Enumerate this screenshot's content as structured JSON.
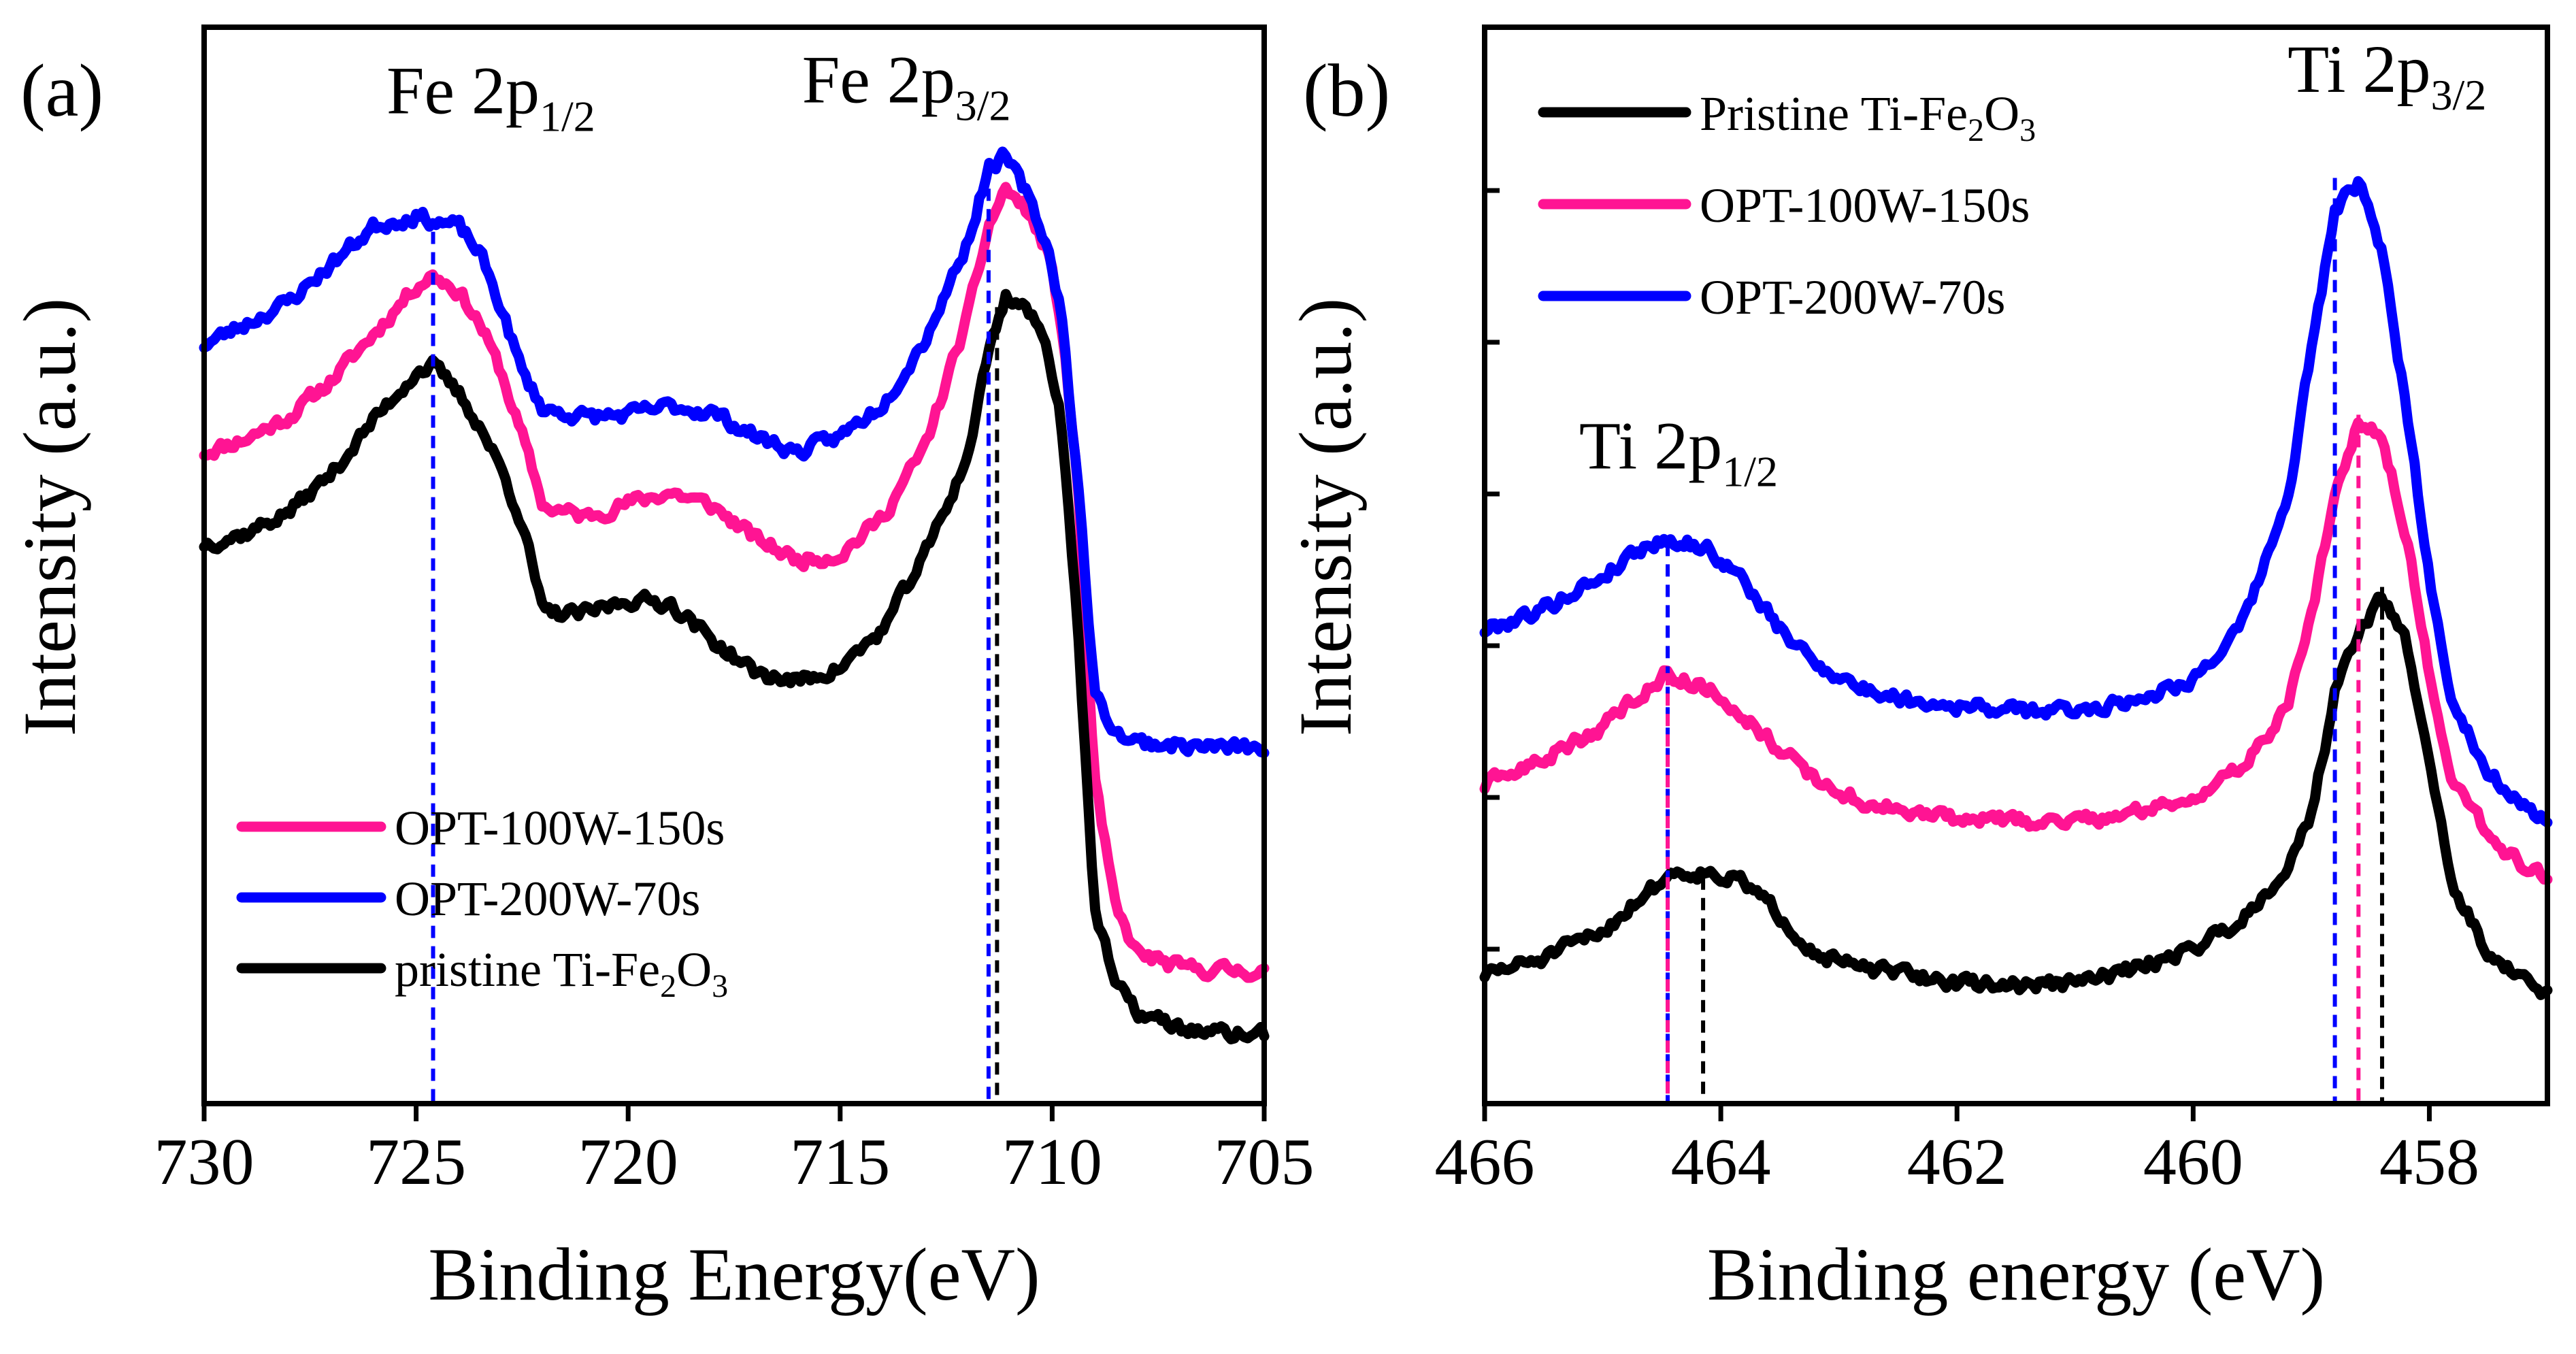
{
  "colors": {
    "black": "#000000",
    "pink": "#ff1493",
    "blue": "#0000ff"
  },
  "chart_data": [
    {
      "panel_label": "(a)",
      "type": "line",
      "xlabel": "Binding Energy(eV)",
      "ylabel": "Intensity (a.u.)",
      "xlim": [
        730,
        705
      ],
      "xticks": [
        730,
        725,
        720,
        715,
        710,
        705
      ],
      "xtick_labels": [
        "730",
        "725",
        "720",
        "715",
        "710",
        "705"
      ],
      "ylim": [
        0,
        100
      ],
      "peak_labels": [
        {
          "base": "Fe 2p",
          "sub": "1/2",
          "x": 725.7,
          "y": 92
        },
        {
          "base": "Fe 2p",
          "sub": "3/2",
          "x": 715.9,
          "y": 93
        }
      ],
      "reference_lines": [
        {
          "x": 724.6,
          "color": "blue",
          "y_top": 81
        },
        {
          "x": 711.3,
          "color": "black",
          "y_top": 74
        },
        {
          "x": 711.5,
          "color": "blue",
          "y_top": 85
        }
      ],
      "legend": [
        {
          "label": "OPT-100W-150s",
          "series": "OPT-100W-150s",
          "color": "pink"
        },
        {
          "label": "OPT-200W-70s",
          "series": "OPT-200W-70s",
          "color": "blue"
        },
        {
          "label_base": "pristine Ti-Fe",
          "label_sub1": "2",
          "label_mid": "O",
          "label_sub2": "3",
          "series": "pristine Ti-Fe2O3",
          "color": "black"
        }
      ],
      "series": [
        {
          "name": "OPT-100W-150s",
          "color": "pink",
          "seed": 11,
          "x": [
            730,
            729,
            728,
            727,
            726,
            725,
            724.6,
            724,
            723.5,
            723,
            722.5,
            722,
            721,
            720,
            719,
            718,
            717,
            716,
            715,
            714,
            713,
            712,
            711.5,
            711.1,
            710.6,
            710.1,
            709.8,
            709.4,
            709,
            708.5,
            708,
            707,
            706,
            705
          ],
          "y": [
            60.5,
            61.8,
            63.8,
            67.2,
            71.5,
            76,
            77,
            75.5,
            72.5,
            68,
            62,
            55.5,
            54.5,
            55.8,
            56.8,
            55.5,
            52.5,
            50.5,
            51,
            54.5,
            61,
            73,
            81.5,
            85,
            83,
            79,
            73,
            58,
            30,
            18,
            14,
            12.6,
            12.4,
            12.3
          ]
        },
        {
          "name": "OPT-200W-70s",
          "color": "blue",
          "seed": 23,
          "x": [
            730,
            729,
            728,
            727,
            726,
            725,
            724.6,
            724,
            723.5,
            723,
            722.5,
            722,
            721,
            720,
            719,
            718,
            717,
            716,
            715,
            714,
            713,
            712,
            711.5,
            711.1,
            710.6,
            710.1,
            709.8,
            709.4,
            709,
            708.5,
            708,
            707,
            706,
            705
          ],
          "y": [
            70.5,
            72.5,
            74.5,
            78,
            81.5,
            82.5,
            82,
            81.5,
            79,
            74,
            68,
            64.5,
            63.8,
            64,
            64.8,
            64.2,
            62,
            60.5,
            62,
            65,
            71,
            80,
            87,
            88,
            84.5,
            79.5,
            74,
            58,
            38,
            34.5,
            33.6,
            33.3,
            33.1,
            33
          ]
        },
        {
          "name": "pristine Ti-Fe2O3",
          "color": "black",
          "seed": 37,
          "x": [
            730,
            729,
            728,
            727,
            726,
            725,
            724.6,
            724,
            723.5,
            723,
            722.5,
            722,
            721,
            720,
            719,
            718,
            717,
            716,
            715,
            714,
            713,
            712,
            711.5,
            711.1,
            710.6,
            710.1,
            709.8,
            709.4,
            709,
            708.5,
            708,
            707,
            706,
            705
          ],
          "y": [
            52,
            53,
            55,
            58.5,
            63.5,
            68,
            68.5,
            66,
            63,
            59,
            54,
            45.5,
            45.5,
            46.8,
            46.5,
            43,
            40,
            39.2,
            40.5,
            44,
            51,
            60,
            70,
            75,
            74,
            70,
            64,
            45,
            18,
            11,
            8.5,
            7,
            6.5,
            6.4
          ]
        }
      ]
    },
    {
      "panel_label": "(b)",
      "type": "line",
      "xlabel": "Binding energy (eV)",
      "ylabel": "Intensity (a.u.)",
      "xlim": [
        466,
        457
      ],
      "xticks": [
        466,
        464,
        462,
        460,
        458
      ],
      "xtick_labels": [
        "466",
        "464",
        "462",
        "460",
        "458"
      ],
      "ylim": [
        0,
        100
      ],
      "peak_labels": [
        {
          "base": "Ti 2p",
          "sub": "1/2",
          "x": 465.2,
          "y": 59
        },
        {
          "base": "Ti 2p",
          "sub": "3/2",
          "x": 459.2,
          "y": 94
        }
      ],
      "reference_lines": [
        {
          "x": 464.45,
          "color": "blue",
          "y_top": 52
        },
        {
          "x": 464.45,
          "color": "pink",
          "y_top": 40
        },
        {
          "x": 464.15,
          "color": "black",
          "y_top": 21
        },
        {
          "x": 458.8,
          "color": "blue",
          "y_top": 86
        },
        {
          "x": 458.6,
          "color": "pink",
          "y_top": 64
        },
        {
          "x": 458.4,
          "color": "black",
          "y_top": 48
        }
      ],
      "legend": [
        {
          "label_base": "Pristine Ti-Fe",
          "label_sub1": "2",
          "label_mid": "O",
          "label_sub2": "3",
          "series": "Pristine Ti-Fe2O3",
          "color": "black"
        },
        {
          "label": "OPT-100W-150s",
          "series": "OPT-100W-150s",
          "color": "pink"
        },
        {
          "label": "OPT-200W-70s",
          "series": "OPT-200W-70s",
          "color": "blue"
        }
      ],
      "series": [
        {
          "name": "Pristine Ti-Fe2O3",
          "color": "black",
          "seed": 51,
          "x": [
            466,
            465.5,
            465,
            464.7,
            464.4,
            464.1,
            463.8,
            463.5,
            463.2,
            462.8,
            462.4,
            462,
            461.5,
            461,
            460.5,
            460,
            459.6,
            459.2,
            459,
            458.8,
            458.6,
            458.4,
            458.2,
            458,
            457.8,
            457.5,
            457.2,
            457
          ],
          "y": [
            12,
            13.5,
            16,
            19,
            21.5,
            21.5,
            20.5,
            17.5,
            14,
            12.5,
            12,
            11.2,
            11,
            11.2,
            12.5,
            14.5,
            17,
            22,
            27,
            38,
            44,
            47,
            43,
            32,
            20,
            14,
            11.5,
            10
          ]
        },
        {
          "name": "OPT-100W-150s",
          "color": "pink",
          "seed": 63,
          "x": [
            466,
            465.5,
            465,
            464.7,
            464.45,
            464.1,
            463.8,
            463.5,
            463.2,
            462.8,
            462.4,
            462,
            461.5,
            461,
            460.5,
            460,
            459.6,
            459.2,
            459,
            458.8,
            458.6,
            458.4,
            458.2,
            458,
            457.8,
            457.5,
            457.2,
            457
          ],
          "y": [
            29.5,
            32,
            35,
            38,
            40,
            38.5,
            36,
            33,
            30,
            28,
            27,
            26.5,
            26.2,
            26.3,
            27,
            28.5,
            31,
            37,
            45,
            57,
            63.5,
            62,
            53,
            40,
            30,
            25,
            22,
            21
          ]
        },
        {
          "name": "OPT-200W-70s",
          "color": "blue",
          "seed": 79,
          "x": [
            466,
            465.5,
            465,
            464.7,
            464.45,
            464.1,
            463.8,
            463.5,
            463.2,
            462.8,
            462.4,
            462,
            461.5,
            461,
            460.5,
            460,
            459.6,
            459.2,
            459,
            458.8,
            458.6,
            458.4,
            458.2,
            458,
            457.8,
            457.5,
            457.2,
            457
          ],
          "y": [
            44,
            46,
            49,
            51.5,
            52.5,
            51.5,
            48.5,
            44,
            41,
            38.5,
            37.5,
            37,
            36.5,
            36.5,
            37.5,
            39.5,
            44,
            56,
            70,
            83,
            85.5,
            79,
            65,
            49,
            37,
            31,
            27.5,
            26
          ]
        }
      ]
    }
  ]
}
